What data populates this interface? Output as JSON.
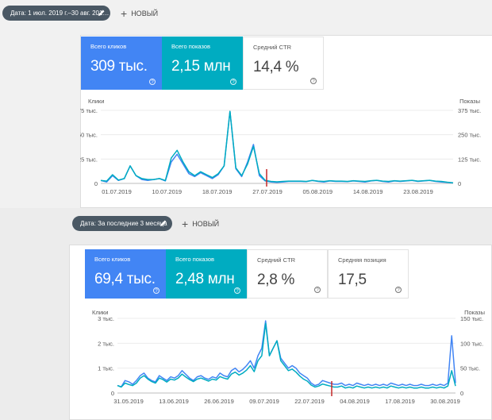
{
  "screen1": {
    "date_filter": "Дата: 1 июл. 2019 г.–30 авг. 201…",
    "new_button": "НОВЫЙ",
    "metrics": [
      {
        "label": "Всего кликов",
        "value": "309 тыс."
      },
      {
        "label": "Всего показов",
        "value": "2,15 млн"
      },
      {
        "label": "Средний CTR",
        "value": "14,4 %"
      }
    ],
    "chart": {
      "left_title": "Клики",
      "right_title": "Показы",
      "y_left_ticks": [
        "75 тыс.",
        "50 тыс.",
        "25 тыс.",
        "0"
      ],
      "y_right_ticks": [
        "375 тыс.",
        "250 тыс.",
        "125 тыс.",
        "0"
      ],
      "x_ticks": [
        "01.07.2019",
        "10.07.2019",
        "18.07.2019",
        "27.07.2019",
        "05.08.2019",
        "14.08.2019",
        "23.08.2019"
      ]
    }
  },
  "screen2": {
    "date_filter": "Дата: За последние 3 месяца",
    "new_button": "НОВЫЙ",
    "metrics": [
      {
        "label": "Всего кликов",
        "value": "69,4 тыс."
      },
      {
        "label": "Всего показов",
        "value": "2,48 млн"
      },
      {
        "label": "Средний CTR",
        "value": "2,8 %"
      },
      {
        "label": "Средняя позиция",
        "value": "17,5"
      }
    ],
    "chart": {
      "left_title": "Клики",
      "right_title": "Показы",
      "y_left_ticks": [
        "3 тыс.",
        "2 тыс.",
        "1 тыс.",
        "0"
      ],
      "y_right_ticks": [
        "150 тыс.",
        "100 тыс.",
        "50 тыс.",
        "0"
      ],
      "x_ticks": [
        "31.05.2019",
        "13.06.2019",
        "26.06.2019",
        "09.07.2019",
        "22.07.2019",
        "04.08.2019",
        "17.08.2019",
        "30.08.2019"
      ]
    }
  },
  "help_glyph": "?",
  "plus_glyph": "+",
  "colors": {
    "clicks": "#4285f4",
    "impressions": "#00acc1",
    "marker": "#c62828",
    "chip": "#4a5864"
  },
  "chart_data": [
    {
      "type": "line",
      "x_ticks": [
        "01.07.2019",
        "10.07.2019",
        "18.07.2019",
        "27.07.2019",
        "05.08.2019",
        "14.08.2019",
        "23.08.2019"
      ],
      "ylim_left": [
        0,
        75000
      ],
      "ylim_right": [
        0,
        375000
      ],
      "annotation": {
        "type": "vertical-marker",
        "date": "28.07.2019"
      },
      "series": [
        {
          "name": "Клики",
          "axis": "left",
          "values": [
            3000,
            1500,
            8000,
            3000,
            5000,
            18000,
            8000,
            4000,
            3000,
            4000,
            5000,
            2500,
            22000,
            30000,
            20000,
            10000,
            7000,
            11000,
            8000,
            5000,
            9000,
            18000,
            74000,
            15000,
            7000,
            22000,
            40000,
            8000,
            2500,
            1500,
            1000,
            1500,
            2000,
            2000,
            2000,
            1800,
            3000,
            2000,
            1500,
            2500,
            2000,
            2000,
            1800,
            2500,
            2000,
            1500,
            2500,
            3000,
            2000,
            1500,
            2500,
            2000,
            2500,
            3000,
            2000,
            2500,
            3000,
            2000,
            1500,
            1000,
            500
          ]
        },
        {
          "name": "Показы",
          "axis": "right",
          "values": [
            15000,
            12000,
            45000,
            17000,
            25000,
            90000,
            40000,
            25000,
            20000,
            20000,
            25000,
            15000,
            130000,
            170000,
            110000,
            60000,
            40000,
            60000,
            45000,
            30000,
            50000,
            90000,
            370000,
            80000,
            40000,
            100000,
            190000,
            50000,
            15000,
            10000,
            8000,
            10000,
            12000,
            12000,
            12000,
            10000,
            15000,
            12000,
            10000,
            14000,
            12000,
            12000,
            10000,
            14000,
            12000,
            10000,
            14000,
            16000,
            12000,
            10000,
            14000,
            12000,
            14000,
            16000,
            12000,
            14000,
            16000,
            12000,
            10000,
            6000,
            3000
          ]
        }
      ]
    },
    {
      "type": "line",
      "x_ticks": [
        "31.05.2019",
        "13.06.2019",
        "26.06.2019",
        "09.07.2019",
        "22.07.2019",
        "04.08.2019",
        "17.08.2019",
        "30.08.2019"
      ],
      "ylim_left": [
        0,
        3000
      ],
      "ylim_right": [
        0,
        150000
      ],
      "annotation": {
        "type": "vertical-marker",
        "date": "31.07.2019"
      },
      "series": [
        {
          "name": "Клики",
          "axis": "left",
          "values": [
            300,
            250,
            500,
            450,
            350,
            500,
            700,
            800,
            600,
            500,
            450,
            700,
            600,
            500,
            650,
            600,
            700,
            900,
            750,
            600,
            500,
            650,
            700,
            600,
            550,
            650,
            600,
            800,
            700,
            650,
            900,
            1000,
            850,
            950,
            1100,
            1300,
            1000,
            1500,
            1800,
            2900,
            1500,
            1800,
            2100,
            1400,
            1200,
            1000,
            1100,
            1000,
            800,
            700,
            600,
            400,
            300,
            350,
            500,
            450,
            400,
            350,
            350,
            400,
            300,
            350,
            300,
            400,
            350,
            300,
            350,
            300,
            350,
            300,
            350,
            300,
            400,
            350,
            300,
            350,
            300,
            350,
            300,
            300,
            350,
            300,
            300,
            350,
            300,
            350,
            300,
            400,
            2300,
            400
          ]
        },
        {
          "name": "Показы",
          "axis": "right",
          "values": [
            15000,
            12000,
            20000,
            17000,
            15000,
            20000,
            30000,
            35000,
            28000,
            23000,
            20000,
            30000,
            27000,
            22000,
            28000,
            26000,
            30000,
            38000,
            32000,
            27000,
            23000,
            28000,
            30000,
            27000,
            24000,
            28000,
            26000,
            33000,
            30000,
            28000,
            38000,
            42000,
            36000,
            40000,
            46000,
            55000,
            43000,
            65000,
            75000,
            140000,
            75000,
            90000,
            105000,
            65000,
            55000,
            45000,
            48000,
            42000,
            34000,
            28000,
            24000,
            16000,
            12000,
            14000,
            18000,
            16000,
            14000,
            12000,
            12000,
            14000,
            10000,
            12000,
            10000,
            14000,
            12000,
            10000,
            12000,
            10000,
            12000,
            10000,
            12000,
            10000,
            14000,
            12000,
            10000,
            12000,
            10000,
            12000,
            10000,
            10000,
            12000,
            10000,
            10000,
            12000,
            10000,
            12000,
            10000,
            14000,
            45000,
            14000
          ]
        }
      ]
    }
  ]
}
